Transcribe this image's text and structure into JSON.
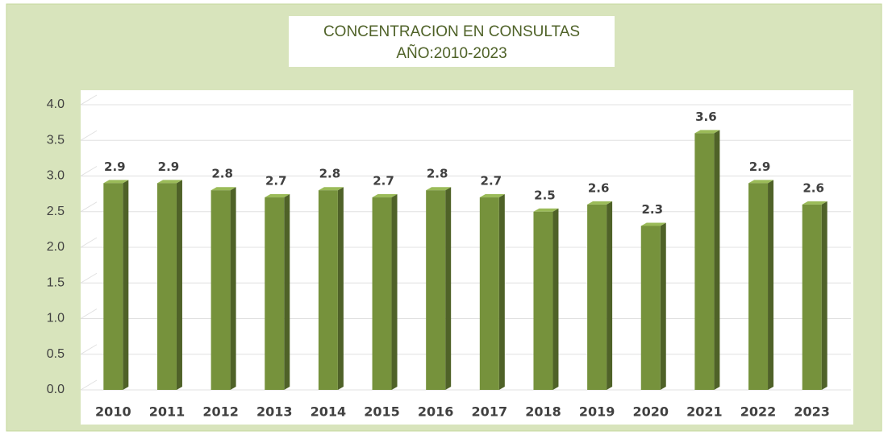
{
  "chart_data": {
    "type": "bar",
    "title": "CONCENTRACION EN CONSULTAS",
    "subtitle": "AÑO:2010-2023",
    "categories": [
      "2010",
      "2011",
      "2012",
      "2013",
      "2014",
      "2015",
      "2016",
      "2017",
      "2018",
      "2019",
      "2020",
      "2021",
      "2022",
      "2023"
    ],
    "values": [
      2.9,
      2.9,
      2.8,
      2.7,
      2.8,
      2.7,
      2.8,
      2.7,
      2.5,
      2.6,
      2.3,
      3.6,
      2.9,
      2.6
    ],
    "color": "#76923c",
    "ylim": [
      0,
      4
    ],
    "yticks": [
      {
        "value": 0,
        "label": "0.0"
      },
      0.5,
      {
        "value": 1,
        "label": "1.0"
      },
      1.5,
      {
        "value": 2,
        "label": "2.0"
      },
      2.5,
      {
        "value": 3,
        "label": "3.0"
      },
      3.5,
      {
        "value": 4,
        "label": "4.0"
      }
    ],
    "grid": true
  }
}
